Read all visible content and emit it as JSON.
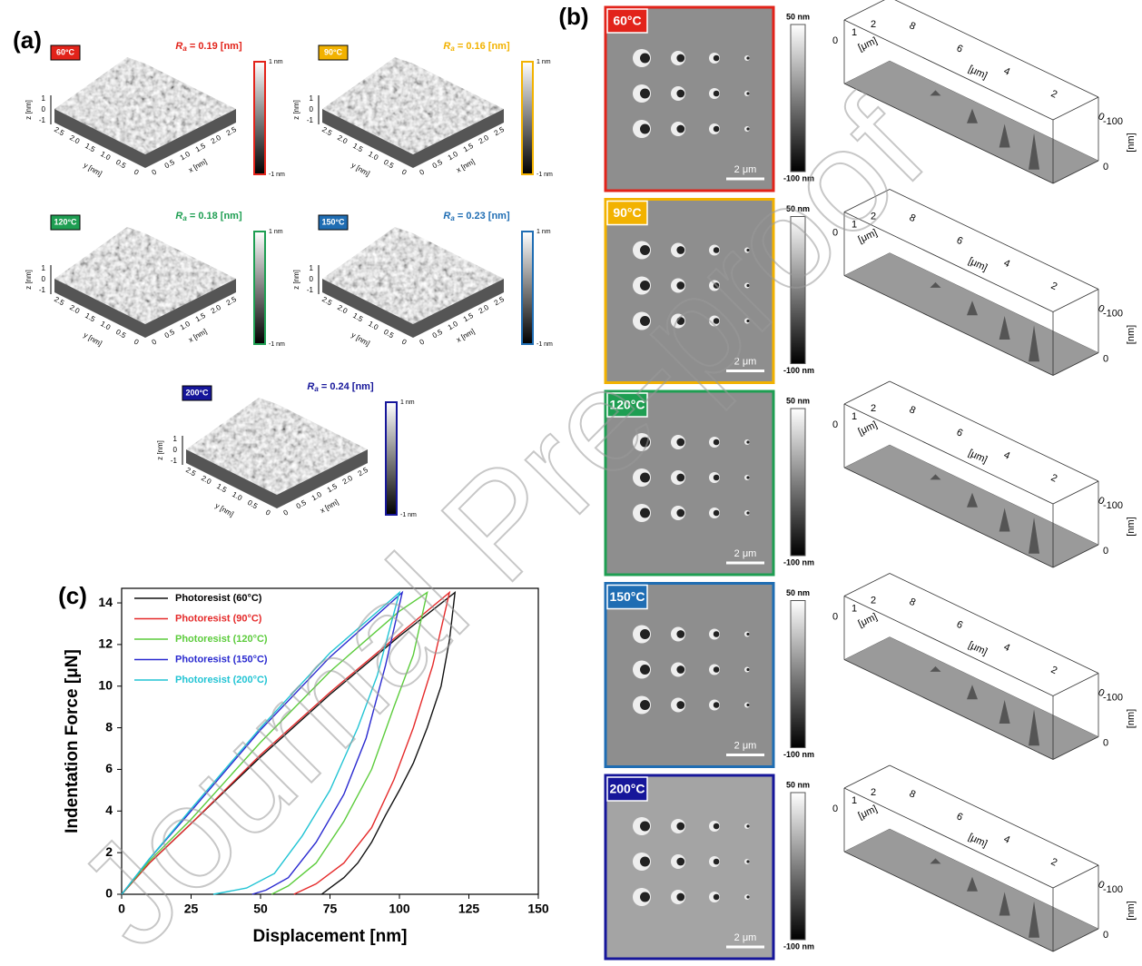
{
  "panel_a": {
    "label": "(a)",
    "ra_symbol": "R",
    "ra_subscript": "a",
    "z_axis": "z [nm]",
    "y_axis": "y [nm]",
    "x_axis": "x [nm]",
    "z_ticks": [
      "1",
      "0",
      "-1"
    ],
    "xy_ticks": [
      "2.5",
      "2.0",
      "1.5",
      "1.0",
      "0.5",
      "0"
    ],
    "colorbar": [
      "1 nm",
      "-1 nm"
    ],
    "plots": [
      {
        "tag": "60°C",
        "ra": " = 0.19 [nm]",
        "color": "#e2231a"
      },
      {
        "tag": "90°C",
        "ra": " = 0.16 [nm]",
        "color": "#f2b200"
      },
      {
        "tag": "120°C",
        "ra": " = 0.18 [nm]",
        "color": "#1e9e52"
      },
      {
        "tag": "150°C",
        "ra": " = 0.23 [nm]",
        "color": "#1f6db3"
      },
      {
        "tag": "200°C",
        "ra": " = 0.24 [nm]",
        "color": "#16169a"
      }
    ]
  },
  "panel_b": {
    "label": "(b)",
    "colorbar": [
      "50 nm",
      "-100 nm"
    ],
    "scale": "2 μm",
    "depth_ticks": [
      "0",
      "1",
      "2"
    ],
    "length_ticks": [
      "8",
      "6",
      "4",
      "2",
      "0"
    ],
    "axis_unit": "[μm]",
    "height_ticks": [
      "-100",
      "0"
    ],
    "height_unit": "[nm]",
    "rows": [
      {
        "tag": "60°C",
        "color": "#e2231a"
      },
      {
        "tag": "90°C",
        "color": "#f2b200"
      },
      {
        "tag": "120°C",
        "color": "#1e9e52"
      },
      {
        "tag": "150°C",
        "color": "#1f6db3"
      },
      {
        "tag": "200°C",
        "color": "#16169a"
      }
    ]
  },
  "watermark": "Journal Pre-proof",
  "chart_data": {
    "type": "line",
    "label": "(c)",
    "x_label": "Displacement [nm]",
    "y_label": "Indentation Force [μN]",
    "xlim": [
      0,
      150
    ],
    "ylim": [
      0,
      14.7
    ],
    "xticks": [
      0,
      25,
      50,
      75,
      100,
      125,
      150
    ],
    "yticks": [
      0,
      2,
      4,
      6,
      8,
      10,
      12,
      14
    ],
    "legend": "upper left",
    "series": [
      {
        "name": "Photoresist (60°C)",
        "color": "#111111",
        "x": [
          0,
          10,
          25,
          50,
          75,
          100,
          120,
          118,
          115,
          110,
          105,
          100,
          95,
          90,
          85,
          80,
          75,
          72
        ],
        "values": [
          0,
          1.5,
          3.4,
          6.6,
          9.6,
          12.4,
          14.5,
          12.2,
          10,
          8,
          6.3,
          5,
          3.8,
          2.5,
          1.5,
          0.8,
          0.3,
          0
        ]
      },
      {
        "name": "Photoresist (90°C)",
        "color": "#e52a2a",
        "x": [
          0,
          10,
          25,
          50,
          75,
          100,
          118,
          112,
          105,
          98,
          90,
          80,
          70,
          62
        ],
        "values": [
          0,
          1.5,
          3.4,
          6.7,
          9.7,
          12.5,
          14.5,
          11,
          8,
          5.5,
          3.2,
          1.5,
          0.5,
          0
        ]
      },
      {
        "name": "Photoresist (120°C)",
        "color": "#5ccc3c",
        "x": [
          0,
          10,
          25,
          50,
          75,
          100,
          110,
          105,
          98,
          90,
          80,
          70,
          60,
          54
        ],
        "values": [
          0,
          1.6,
          3.6,
          7.3,
          10.7,
          13.6,
          14.5,
          11.5,
          9,
          6,
          3.5,
          1.5,
          0.4,
          0
        ]
      },
      {
        "name": "Photoresist (150°C)",
        "color": "#2a2ad0",
        "x": [
          0,
          10,
          25,
          50,
          75,
          101,
          95,
          88,
          80,
          70,
          60,
          52,
          47
        ],
        "values": [
          0,
          1.7,
          4,
          7.9,
          11.4,
          14.5,
          11,
          7.5,
          4.8,
          2.5,
          0.8,
          0.2,
          0
        ]
      },
      {
        "name": "Photoresist (200°C)",
        "color": "#22c4d4",
        "x": [
          0,
          10,
          25,
          50,
          75,
          100,
          92,
          85,
          75,
          65,
          55,
          45,
          33
        ],
        "values": [
          0,
          1.7,
          4.1,
          8,
          11.6,
          14.5,
          10.5,
          8,
          5,
          2.8,
          1,
          0.3,
          0
        ]
      }
    ]
  }
}
